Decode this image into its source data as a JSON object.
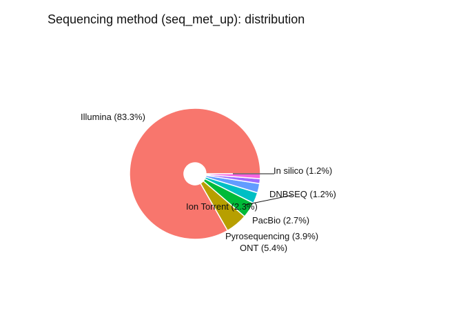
{
  "chart_data": {
    "type": "pie",
    "title": "Sequencing method (seq_met_up): distribution",
    "slices": [
      {
        "label": "Illumina (83.3%)",
        "value": 83.3,
        "color": "#F8766D"
      },
      {
        "label": "ONT (5.4%)",
        "value": 5.4,
        "color": "#B79F00"
      },
      {
        "label": "Pyrosequencing (3.9%)",
        "value": 3.9,
        "color": "#00BA38"
      },
      {
        "label": "PacBio (2.7%)",
        "value": 2.7,
        "color": "#00BFC4"
      },
      {
        "label": "Ion Torrent (2.3%)",
        "value": 2.3,
        "color": "#619CFF"
      },
      {
        "label": "DNBSEQ (1.2%)",
        "value": 1.2,
        "color": "#9C6BFF"
      },
      {
        "label": "In silico (1.2%)",
        "value": 1.2,
        "color": "#F564E3"
      }
    ],
    "legend": "none"
  }
}
